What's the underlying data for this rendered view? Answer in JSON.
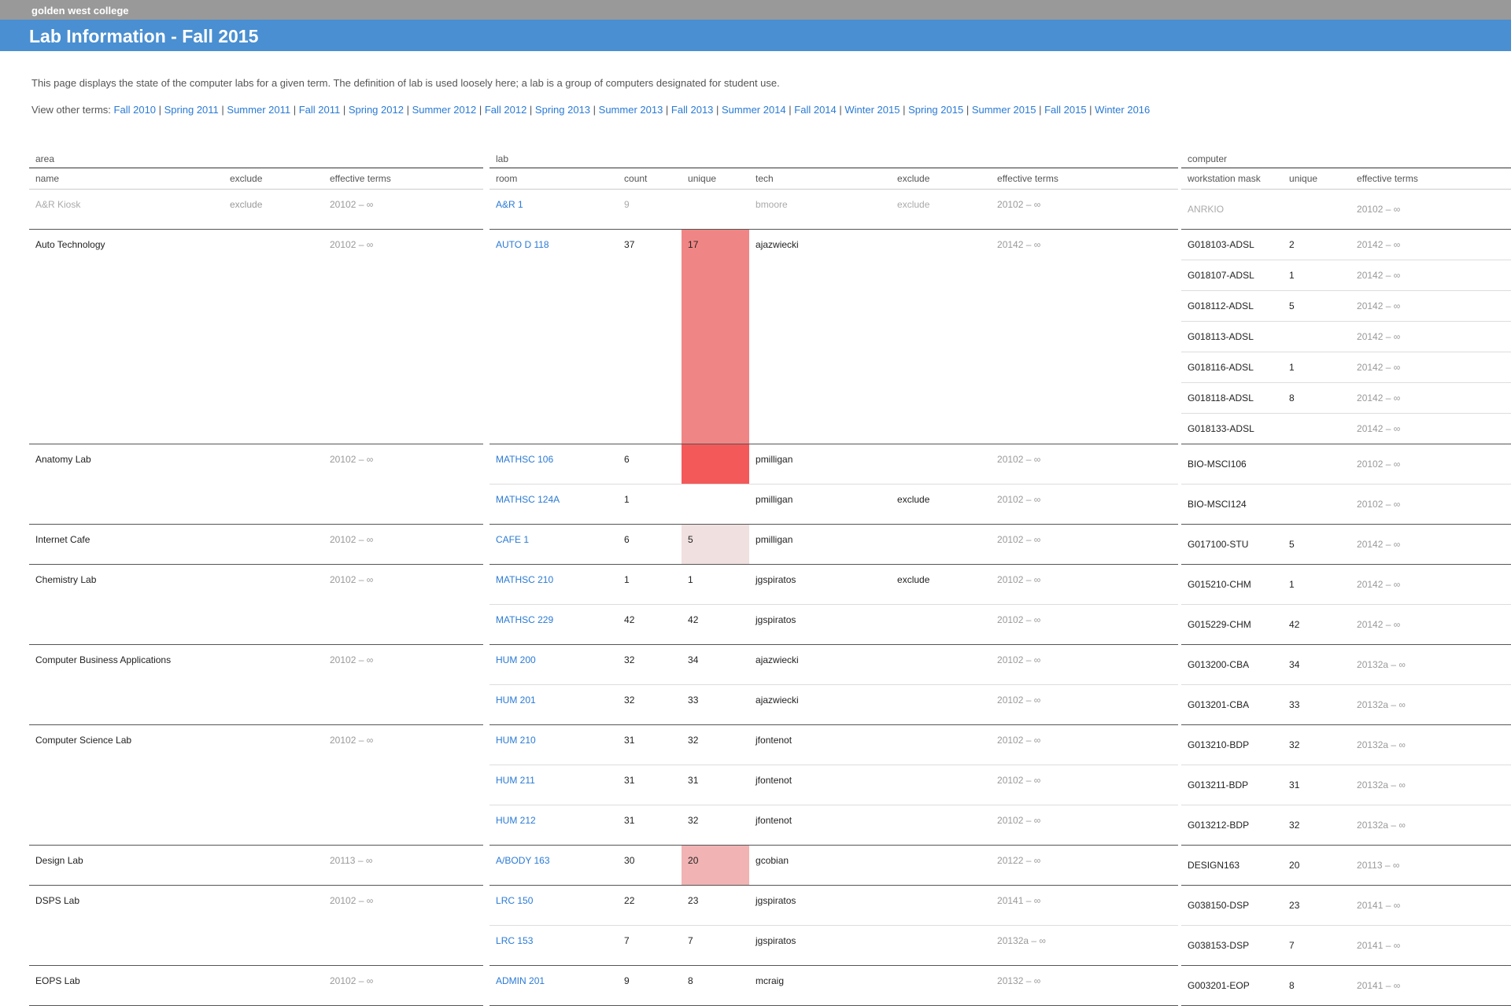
{
  "college": "golden west college",
  "title": "Lab Information - Fall 2015",
  "description": "This page displays the state of the computer labs for a given term. The definition of lab is used loosely here; a lab is a group of computers designated for student use.",
  "terms_prefix": "View other terms:",
  "terms": [
    "Fall 2010",
    "Spring 2011",
    "Summer 2011",
    "Fall 2011",
    "Spring 2012",
    "Summer 2012",
    "Fall 2012",
    "Spring 2013",
    "Summer 2013",
    "Fall 2013",
    "Summer 2014",
    "Fall 2014",
    "Winter 2015",
    "Spring 2015",
    "Summer 2015",
    "Fall 2015",
    "Winter 2016"
  ],
  "groups": {
    "area": "area",
    "lab": "lab",
    "computer": "computer"
  },
  "headers": {
    "area": [
      "name",
      "exclude",
      "effective terms"
    ],
    "lab": [
      "room",
      "count",
      "unique",
      "tech",
      "exclude",
      "effective terms"
    ],
    "computer": [
      "workstation mask",
      "unique",
      "effective terms"
    ]
  },
  "rows": [
    {
      "area": "A&R Kiosk",
      "area_exclude": "exclude",
      "area_terms": "20102 – ∞",
      "muted": true,
      "labs": [
        {
          "room": "A&R 1",
          "count": "9",
          "unique": "",
          "tech": "bmoore",
          "exclude": "exclude",
          "terms": "20102 – ∞",
          "computers": [
            {
              "mask": "ANRKIO",
              "unique": "",
              "terms": "20102 – ∞"
            }
          ]
        }
      ]
    },
    {
      "area": "Auto Technology",
      "area_exclude": "",
      "area_terms": "20102 – ∞",
      "labs": [
        {
          "room": "AUTO D 118",
          "count": "37",
          "unique": "17",
          "heat": "mid",
          "tech": "ajazwiecki",
          "exclude": "",
          "terms": "20142 – ∞",
          "computers": [
            {
              "mask": "G018103-ADSL",
              "unique": "2",
              "terms": "20142 – ∞"
            },
            {
              "mask": "G018107-ADSL",
              "unique": "1",
              "terms": "20142 – ∞"
            },
            {
              "mask": "G018112-ADSL",
              "unique": "5",
              "terms": "20142 – ∞"
            },
            {
              "mask": "G018113-ADSL",
              "unique": "",
              "terms": "20142 – ∞"
            },
            {
              "mask": "G018116-ADSL",
              "unique": "1",
              "terms": "20142 – ∞"
            },
            {
              "mask": "G018118-ADSL",
              "unique": "8",
              "terms": "20142 – ∞"
            },
            {
              "mask": "G018133-ADSL",
              "unique": "",
              "terms": "20142 – ∞"
            }
          ]
        }
      ]
    },
    {
      "area": "Anatomy Lab",
      "area_exclude": "",
      "area_terms": "20102 – ∞",
      "labs": [
        {
          "room": "MATHSC 106",
          "count": "6",
          "unique": "",
          "heat": "hi",
          "tech": "pmilligan",
          "exclude": "",
          "terms": "20102 – ∞",
          "computers": [
            {
              "mask": "BIO-MSCI106",
              "unique": "",
              "terms": "20102 – ∞"
            }
          ]
        },
        {
          "room": "MATHSC 124A",
          "count": "1",
          "unique": "",
          "tech": "pmilligan",
          "exclude": "exclude",
          "terms": "20102 – ∞",
          "computers": [
            {
              "mask": "BIO-MSCI124",
              "unique": "",
              "terms": "20102 – ∞"
            }
          ]
        }
      ]
    },
    {
      "area": "Internet Cafe",
      "area_exclude": "",
      "area_terms": "20102 – ∞",
      "labs": [
        {
          "room": "CAFE 1",
          "count": "6",
          "unique": "5",
          "heat": "vlo",
          "tech": "pmilligan",
          "exclude": "",
          "terms": "20102 – ∞",
          "computers": [
            {
              "mask": "G017100-STU",
              "unique": "5",
              "terms": "20142 – ∞"
            }
          ]
        }
      ]
    },
    {
      "area": "Chemistry Lab",
      "area_exclude": "",
      "area_terms": "20102 – ∞",
      "labs": [
        {
          "room": "MATHSC 210",
          "count": "1",
          "unique": "1",
          "tech": "jgspiratos",
          "exclude": "exclude",
          "terms": "20102 – ∞",
          "computers": [
            {
              "mask": "G015210-CHM",
              "unique": "1",
              "terms": "20142 – ∞"
            }
          ]
        },
        {
          "room": "MATHSC 229",
          "count": "42",
          "unique": "42",
          "tech": "jgspiratos",
          "exclude": "",
          "terms": "20102 – ∞",
          "computers": [
            {
              "mask": "G015229-CHM",
              "unique": "42",
              "terms": "20142 – ∞"
            }
          ]
        }
      ]
    },
    {
      "area": "Computer Business Applications",
      "area_exclude": "",
      "area_terms": "20102 – ∞",
      "labs": [
        {
          "room": "HUM 200",
          "count": "32",
          "unique": "34",
          "tech": "ajazwiecki",
          "exclude": "",
          "terms": "20102 – ∞",
          "computers": [
            {
              "mask": "G013200-CBA",
              "unique": "34",
              "terms": "20132a – ∞"
            }
          ]
        },
        {
          "room": "HUM 201",
          "count": "32",
          "unique": "33",
          "tech": "ajazwiecki",
          "exclude": "",
          "terms": "20102 – ∞",
          "computers": [
            {
              "mask": "G013201-CBA",
              "unique": "33",
              "terms": "20132a – ∞"
            }
          ]
        }
      ]
    },
    {
      "area": "Computer Science Lab",
      "area_exclude": "",
      "area_terms": "20102 – ∞",
      "labs": [
        {
          "room": "HUM 210",
          "count": "31",
          "unique": "32",
          "tech": "jfontenot",
          "exclude": "",
          "terms": "20102 – ∞",
          "computers": [
            {
              "mask": "G013210-BDP",
              "unique": "32",
              "terms": "20132a – ∞"
            }
          ]
        },
        {
          "room": "HUM 211",
          "count": "31",
          "unique": "31",
          "tech": "jfontenot",
          "exclude": "",
          "terms": "20102 – ∞",
          "computers": [
            {
              "mask": "G013211-BDP",
              "unique": "31",
              "terms": "20132a – ∞"
            }
          ]
        },
        {
          "room": "HUM 212",
          "count": "31",
          "unique": "32",
          "tech": "jfontenot",
          "exclude": "",
          "terms": "20102 – ∞",
          "computers": [
            {
              "mask": "G013212-BDP",
              "unique": "32",
              "terms": "20132a – ∞"
            }
          ]
        }
      ]
    },
    {
      "area": "Design Lab",
      "area_exclude": "",
      "area_terms": "20113 – ∞",
      "labs": [
        {
          "room": "A/BODY 163",
          "count": "30",
          "unique": "20",
          "heat": "lo",
          "tech": "gcobian",
          "exclude": "",
          "terms": "20122 – ∞",
          "computers": [
            {
              "mask": "DESIGN163",
              "unique": "20",
              "terms": "20113 – ∞"
            }
          ]
        }
      ]
    },
    {
      "area": "DSPS Lab",
      "area_exclude": "",
      "area_terms": "20102 – ∞",
      "labs": [
        {
          "room": "LRC 150",
          "count": "22",
          "unique": "23",
          "tech": "jgspiratos",
          "exclude": "",
          "terms": "20141 – ∞",
          "computers": [
            {
              "mask": "G038150-DSP",
              "unique": "23",
              "terms": "20141 – ∞"
            }
          ]
        },
        {
          "room": "LRC 153",
          "count": "7",
          "unique": "7",
          "tech": "jgspiratos",
          "exclude": "",
          "terms": "20132a – ∞",
          "computers": [
            {
              "mask": "G038153-DSP",
              "unique": "7",
              "terms": "20141 – ∞"
            }
          ]
        }
      ]
    },
    {
      "area": "EOPS Lab",
      "area_exclude": "",
      "area_terms": "20102 – ∞",
      "labs": [
        {
          "room": "ADMIN 201",
          "count": "9",
          "unique": "8",
          "tech": "mcraig",
          "exclude": "",
          "terms": "20132 – ∞",
          "computers": [
            {
              "mask": "G003201-EOP",
              "unique": "8",
              "terms": "20141 – ∞"
            }
          ]
        }
      ]
    }
  ]
}
